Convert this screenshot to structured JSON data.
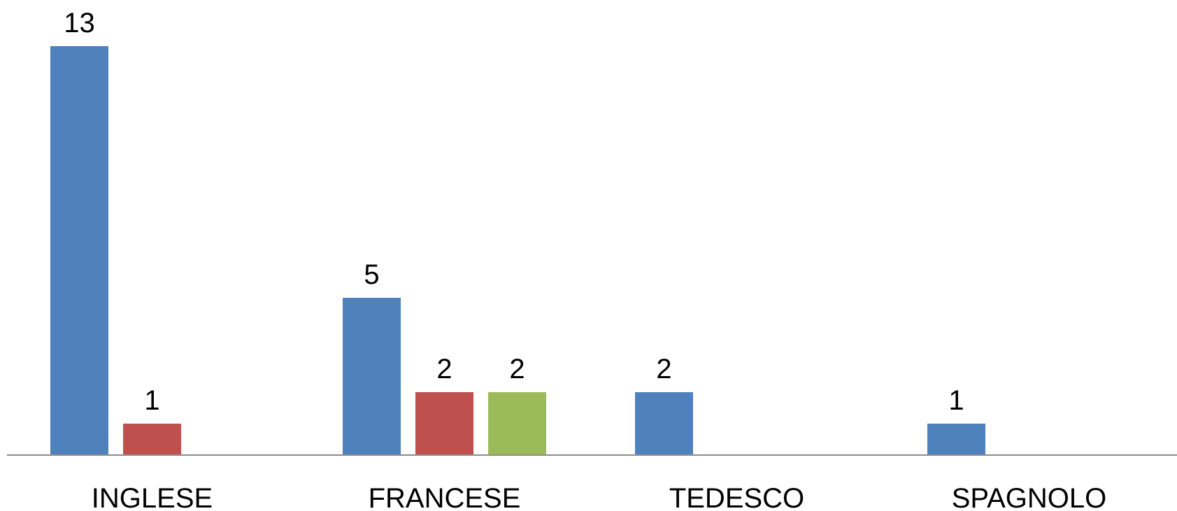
{
  "chart_data": {
    "type": "bar",
    "title": "",
    "xlabel": "",
    "ylabel": "",
    "categories": [
      "INGLESE",
      "FRANCESE",
      "TEDESCO",
      "SPAGNOLO"
    ],
    "series": [
      {
        "color": "#4F81BD",
        "values": [
          13,
          5,
          2,
          1
        ]
      },
      {
        "color": "#C0504D",
        "values": [
          1,
          2,
          null,
          null
        ]
      },
      {
        "color": "#9BBB59",
        "values": [
          null,
          2,
          null,
          null
        ]
      }
    ],
    "ylim": [
      0,
      13
    ],
    "grid": false,
    "legend": "none",
    "axis_color": "#8C8C8C"
  }
}
